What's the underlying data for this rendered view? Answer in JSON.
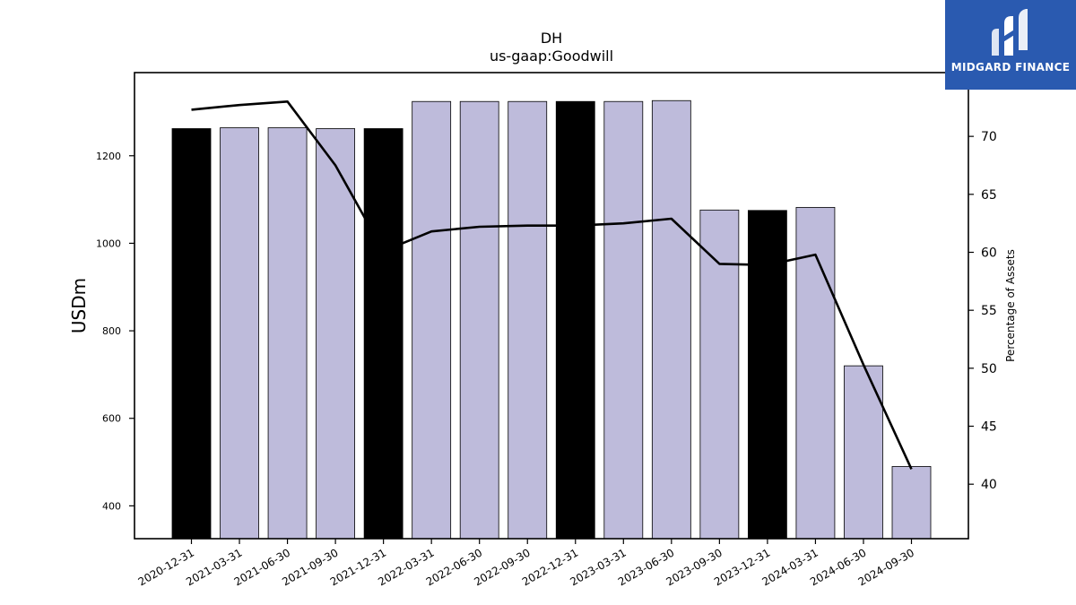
{
  "chart_data": {
    "type": "bar",
    "title": "DH",
    "subtitle": "us-gaap:Goodwill",
    "ylabel": "USDm",
    "y2label": "Percentage of Assets",
    "categories": [
      "2020-12-31",
      "2021-03-31",
      "2021-06-30",
      "2021-09-30",
      "2021-12-31",
      "2022-03-31",
      "2022-06-30",
      "2022-09-30",
      "2022-12-31",
      "2023-03-31",
      "2023-06-30",
      "2023-09-30",
      "2023-12-31",
      "2024-03-31",
      "2024-06-30",
      "2024-09-30"
    ],
    "series": [
      {
        "type": "bar",
        "axis": "left",
        "values": [
          1262,
          1264,
          1264,
          1262,
          1262,
          1324,
          1324,
          1324,
          1324,
          1324,
          1326,
          1076,
          1075,
          1082,
          720,
          490
        ],
        "highlight": [
          true,
          false,
          false,
          false,
          true,
          false,
          false,
          false,
          true,
          false,
          false,
          false,
          true,
          false,
          false,
          false
        ]
      },
      {
        "type": "line",
        "axis": "right",
        "values": [
          72.3,
          72.7,
          73.0,
          67.5,
          60.1,
          61.8,
          62.2,
          62.3,
          62.3,
          62.5,
          62.9,
          59.0,
          58.9,
          59.8,
          50.3,
          41.3
        ]
      }
    ],
    "ylim": [
      325,
      1390
    ],
    "y2lim": [
      35.3,
      75.5
    ],
    "yticks": [
      400,
      600,
      800,
      1000,
      1200
    ],
    "y2ticks": [
      40,
      45,
      50,
      55,
      60,
      65,
      70
    ],
    "grid": false,
    "colors": {
      "bar": "#bebbdb",
      "highlight": "#000000",
      "line": "#000000"
    }
  },
  "logo": {
    "text": "MIDGARD FINANCE",
    "color": "#2a5ab0"
  }
}
